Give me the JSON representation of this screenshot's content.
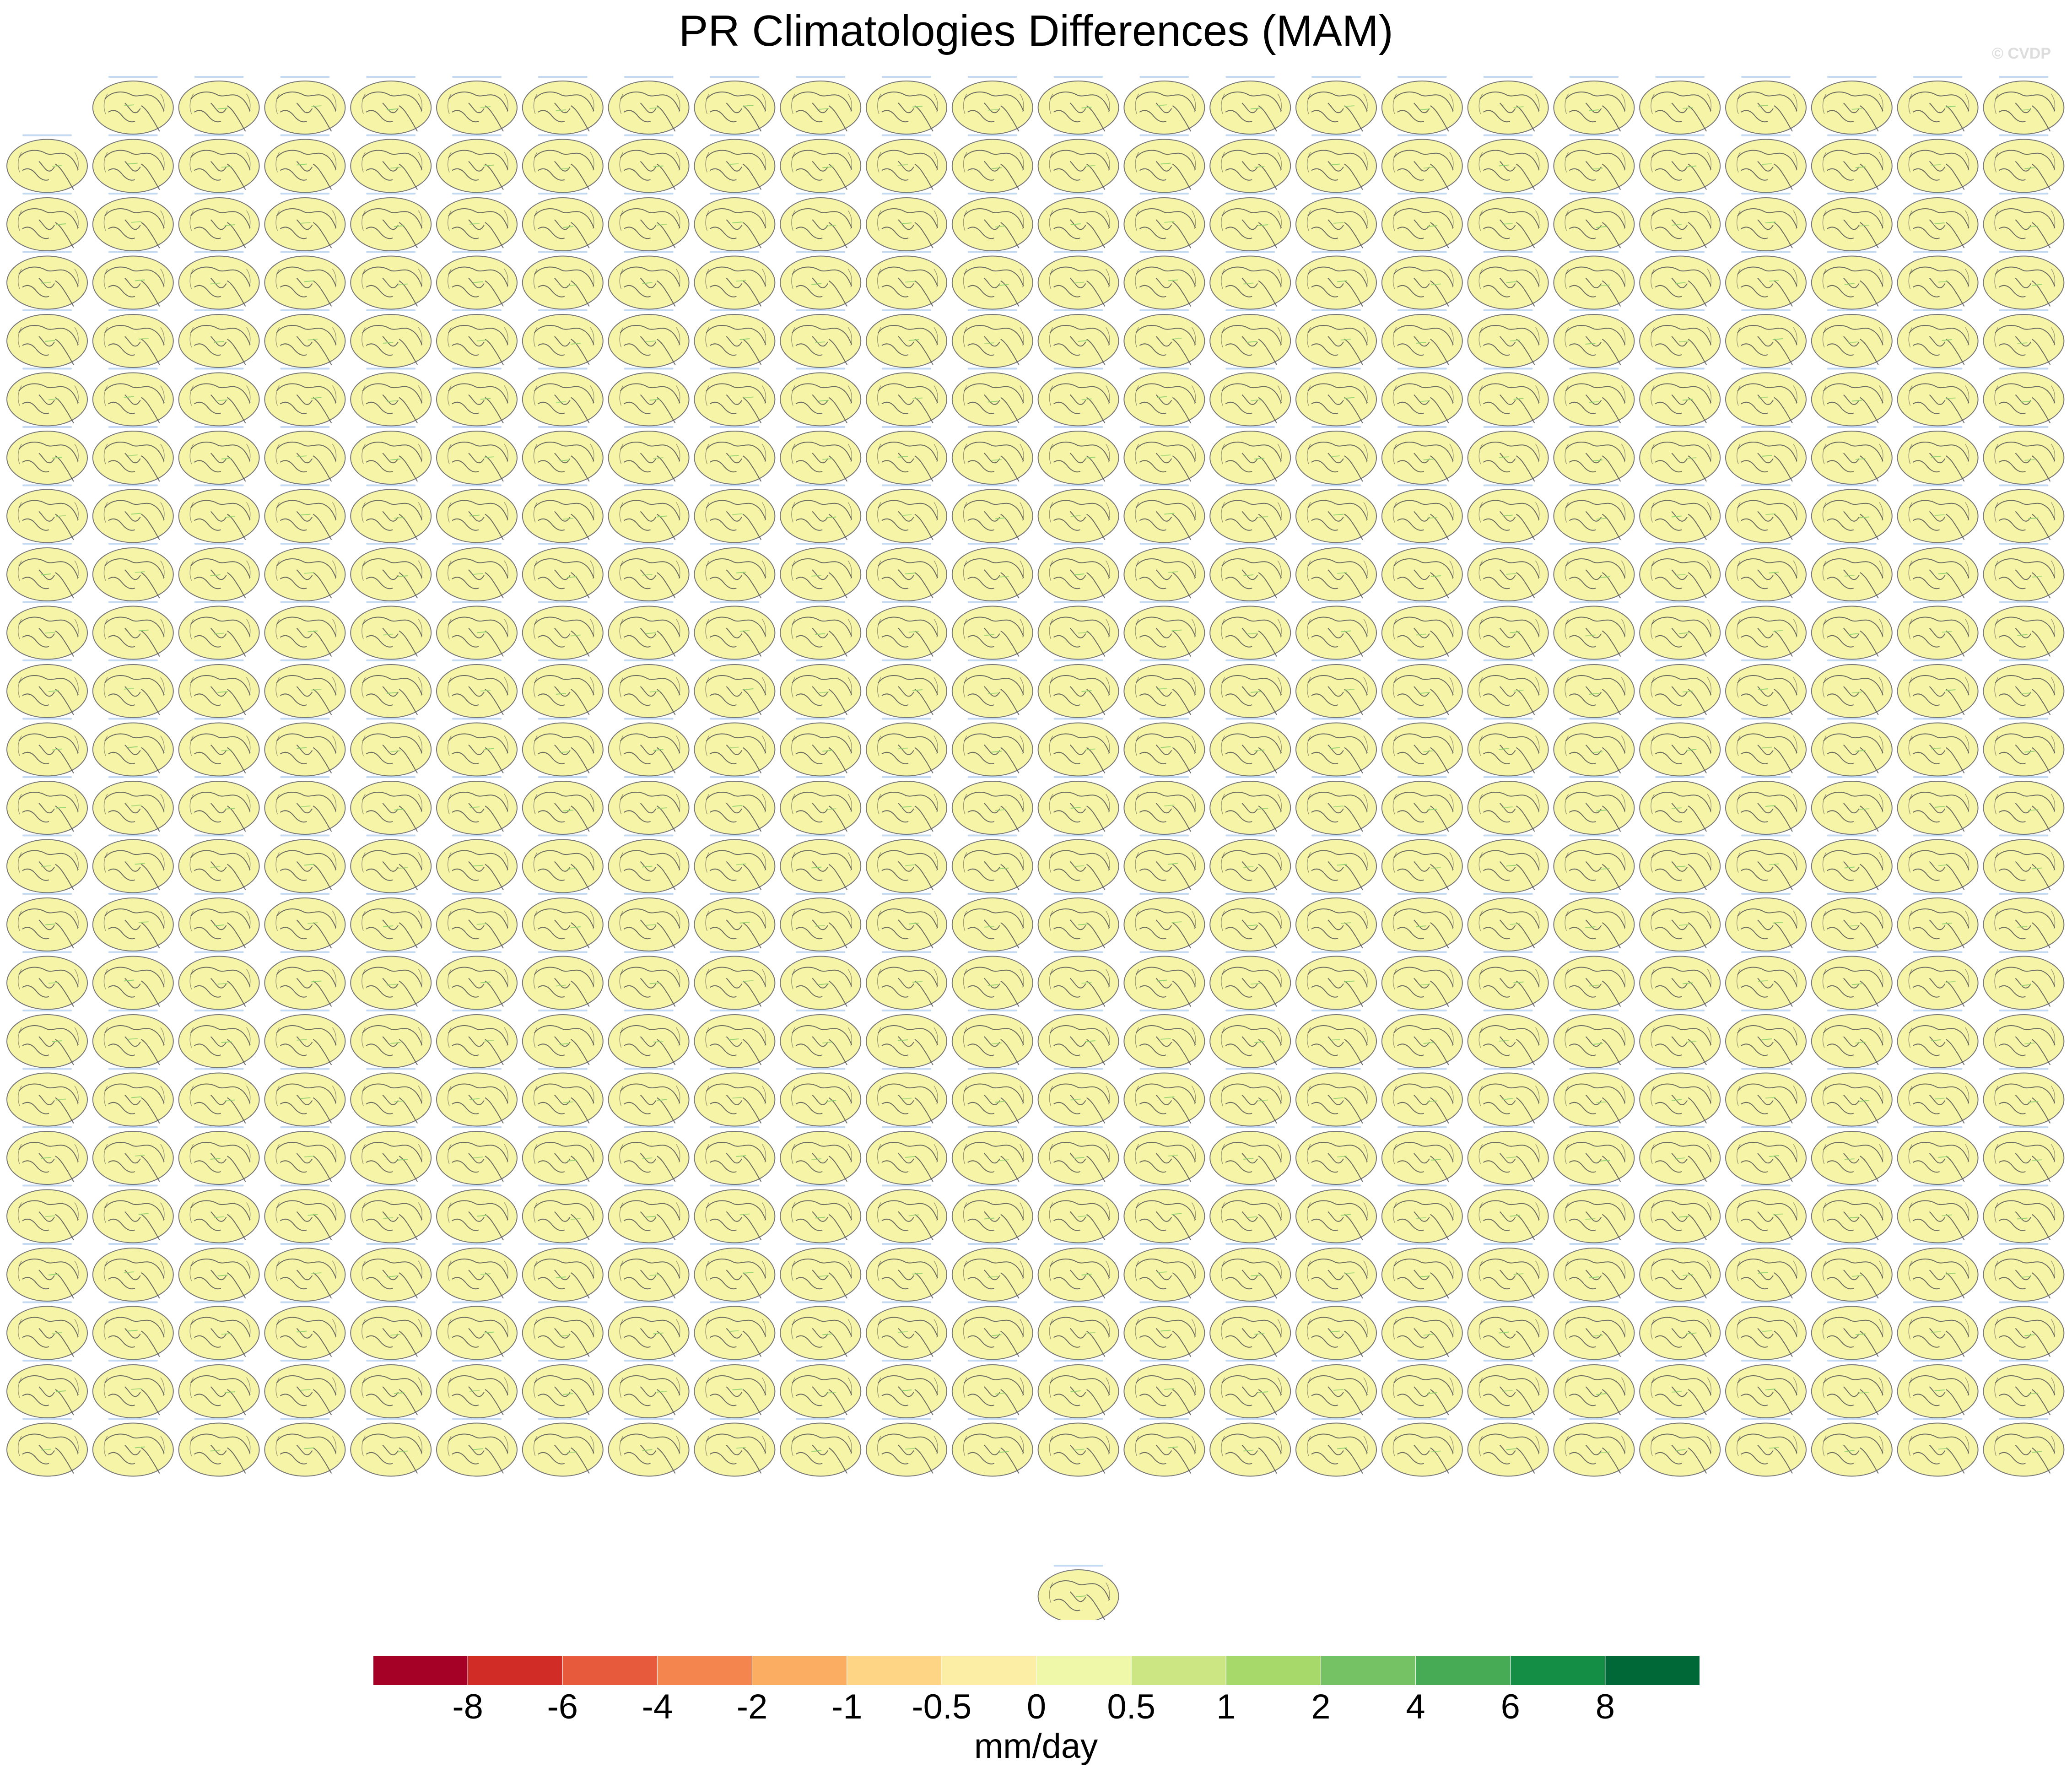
{
  "chart_data": {
    "type": "heatmap",
    "title": "PR Climatologies Differences (MAM)",
    "watermark": "© CVDP",
    "units": "mm/day",
    "panel_grid": {
      "columns": 24,
      "rows": 25,
      "first_row_panels": 23,
      "middle_row_panels": 24,
      "last_row_panels": 1,
      "panel_count": 576
    },
    "panel_style": {
      "fill_color": "#f6f4a6",
      "coast_color": "#555555",
      "label_color": "#2a7bd4",
      "anomaly_color": "#8fd16f"
    },
    "colorbar": {
      "levels": [
        "-8",
        "-6",
        "-4",
        "-2",
        "-1",
        "-0.5",
        "0",
        "0.5",
        "1",
        "2",
        "4",
        "6",
        "8"
      ],
      "colors": [
        "#a50026",
        "#d22c27",
        "#e75a3c",
        "#f5854f",
        "#fbae61",
        "#fdd584",
        "#fdeea6",
        "#eff7a9",
        "#cbe682",
        "#a6d96a",
        "#74c264",
        "#47aa55",
        "#148d45",
        "#006837"
      ]
    }
  }
}
